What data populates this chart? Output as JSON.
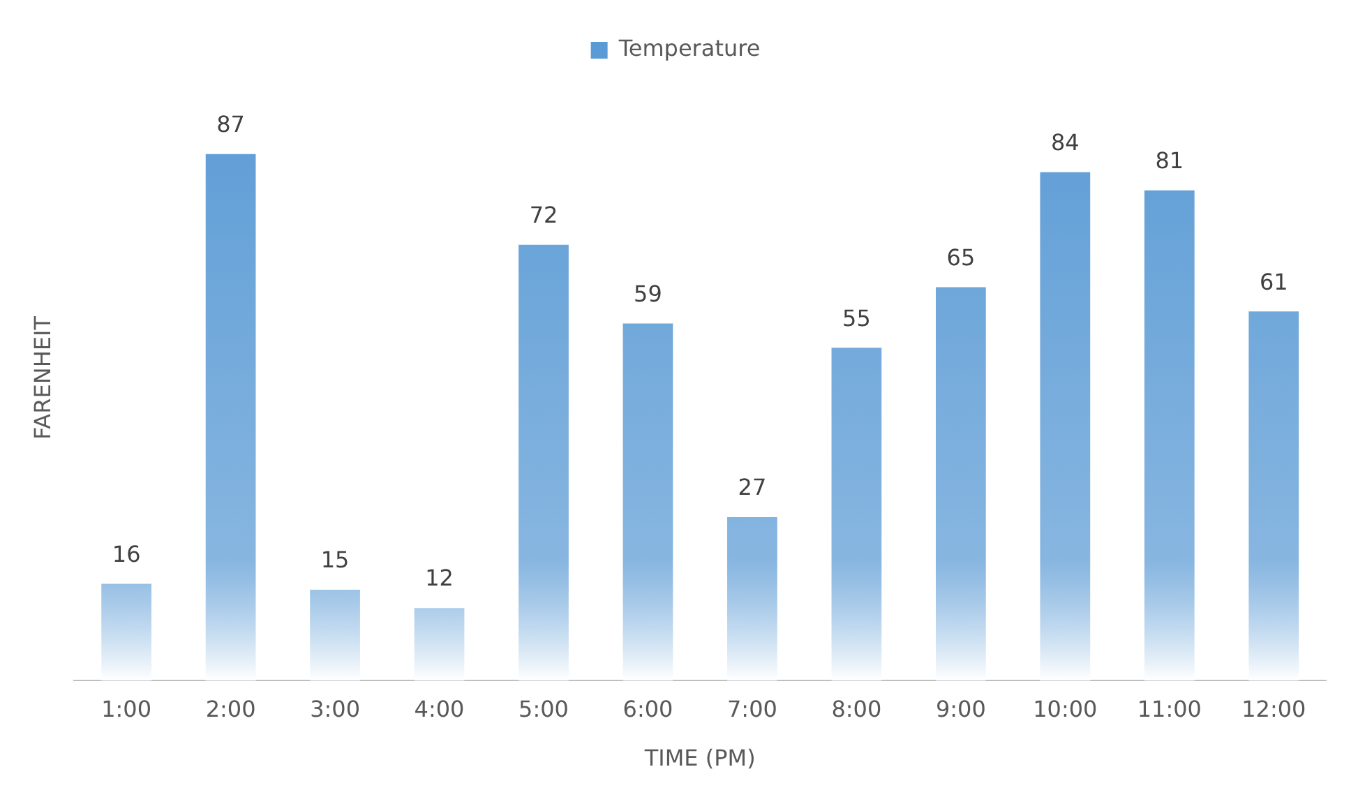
{
  "chart_data": {
    "type": "bar",
    "xlabel": "TIME (PM)",
    "ylabel": "FARENHEIT",
    "categories": [
      "1:00",
      "2:00",
      "3:00",
      "4:00",
      "5:00",
      "6:00",
      "7:00",
      "8:00",
      "9:00",
      "10:00",
      "11:00",
      "12:00"
    ],
    "series": [
      {
        "name": "Temperature",
        "color": "#5b9bd5",
        "values": [
          16,
          87,
          15,
          12,
          72,
          59,
          27,
          55,
          65,
          84,
          81,
          61
        ]
      }
    ],
    "data_labels": true,
    "legend": "top",
    "grid": false,
    "tick_labels": "x"
  }
}
